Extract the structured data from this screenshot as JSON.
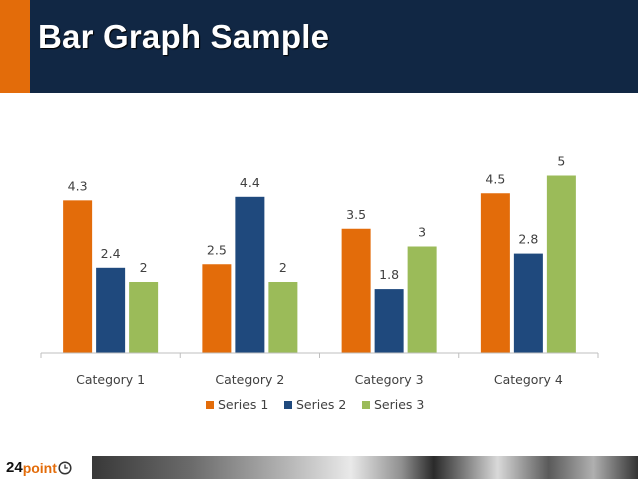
{
  "slide": {
    "title": "Bar Graph Sample"
  },
  "colors": {
    "header_bg": "#112744",
    "accent_orange": "#e36c0a",
    "series": [
      "#e36c0a",
      "#1f497d",
      "#9bbb59"
    ]
  },
  "chart_data": {
    "type": "bar",
    "title": "",
    "xlabel": "",
    "ylabel": "",
    "ylim": [
      0,
      5.5
    ],
    "grid": false,
    "legend_position": "bottom",
    "categories": [
      "Category 1",
      "Category 2",
      "Category 3",
      "Category 4"
    ],
    "series": [
      {
        "name": "Series 1",
        "values": [
          4.3,
          2.5,
          3.5,
          4.5
        ]
      },
      {
        "name": "Series 2",
        "values": [
          2.4,
          4.4,
          1.8,
          2.8
        ]
      },
      {
        "name": "Series 3",
        "values": [
          2,
          2,
          3,
          5
        ]
      }
    ]
  },
  "footer": {
    "logo_number": "24",
    "logo_word": "point",
    "logo_icon": "clock-icon"
  }
}
